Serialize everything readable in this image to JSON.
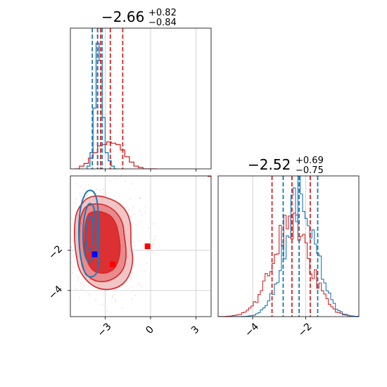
{
  "chart_data": [
    {
      "type": "histogram",
      "panel": "marginal-param-1",
      "title_value": "−2.66",
      "title_plus": "+0.82",
      "title_minus": "−0.84",
      "xlim": [
        -5.3,
        4.0
      ],
      "x_ticks": [
        -3,
        0,
        3
      ],
      "x_tick_labels": [],
      "grid": true,
      "series": [
        {
          "color": "#d62728",
          "bins": [
            -5.0,
            -4.7,
            -4.4,
            -4.1,
            -3.8,
            -3.5,
            -3.2,
            -2.9,
            -2.6,
            -2.3,
            -2.0,
            -1.7,
            -1.4,
            -1.1,
            -0.8,
            -0.5,
            -0.2,
            0.1,
            0.4
          ],
          "values": [
            0,
            0.02,
            0.04,
            0.08,
            0.12,
            0.17,
            0.18,
            0.2,
            0.19,
            0.18,
            0.14,
            0.09,
            0.05,
            0.02,
            0.01,
            0,
            0,
            0
          ],
          "quantiles": [
            -3.5,
            -3.3,
            -2.66,
            -1.84
          ]
        },
        {
          "color": "#1f77b4",
          "bins": [
            -4.2,
            -4.0,
            -3.8,
            -3.6,
            -3.4,
            -3.2,
            -3.0,
            -2.8,
            -2.6,
            -2.4,
            -2.2
          ],
          "values": [
            0.02,
            0.12,
            0.45,
            0.93,
            0.8,
            0.38,
            0.12,
            0.06,
            0.02,
            0
          ],
          "quantiles": [
            -3.85,
            -3.5,
            -3.2
          ]
        }
      ]
    },
    {
      "type": "heatmap",
      "panel": "joint-2d-contours",
      "xlim": [
        -5.3,
        4.0
      ],
      "ylim": [
        -5.3,
        1.7
      ],
      "x_ticks": [
        -3,
        0,
        3
      ],
      "x_tick_labels": [
        "−3",
        "0",
        "3"
      ],
      "y_ticks": [
        -2,
        -4
      ],
      "y_tick_labels": [
        "−2",
        "−4"
      ],
      "grid": true,
      "points": [
        {
          "x": -3.7,
          "y": -2.2,
          "color": "#0000ff"
        },
        {
          "x": -2.5,
          "y": -2.7,
          "color": "#ff0000"
        },
        {
          "x": -0.2,
          "y": -1.8,
          "color": "#ff0000"
        },
        {
          "x": 3.95,
          "y": 1.8,
          "color": "#ff0000"
        }
      ],
      "series": [
        {
          "color": "#d62728",
          "center": [
            -2.7,
            -2.5
          ],
          "levels": [
            "outer",
            "middle",
            "inner"
          ]
        },
        {
          "color": "#1f77b4",
          "center": [
            -3.6,
            -2.3
          ],
          "levels": [
            "outer",
            "inner"
          ]
        }
      ]
    },
    {
      "type": "histogram",
      "panel": "marginal-param-2",
      "title_value": "−2.52",
      "title_plus": "+0.69",
      "title_minus": "−0.75",
      "xlim": [
        -5.3,
        0.0
      ],
      "x_ticks": [
        -4,
        -2
      ],
      "x_tick_labels": [
        "−4",
        "−2"
      ],
      "grid": true,
      "series": [
        {
          "color": "#d62728",
          "quantiles": [
            -3.27,
            -2.52,
            -1.83
          ]
        },
        {
          "color": "#1f77b4",
          "quantiles": [
            -2.85,
            -2.25,
            -1.55
          ]
        }
      ]
    }
  ]
}
